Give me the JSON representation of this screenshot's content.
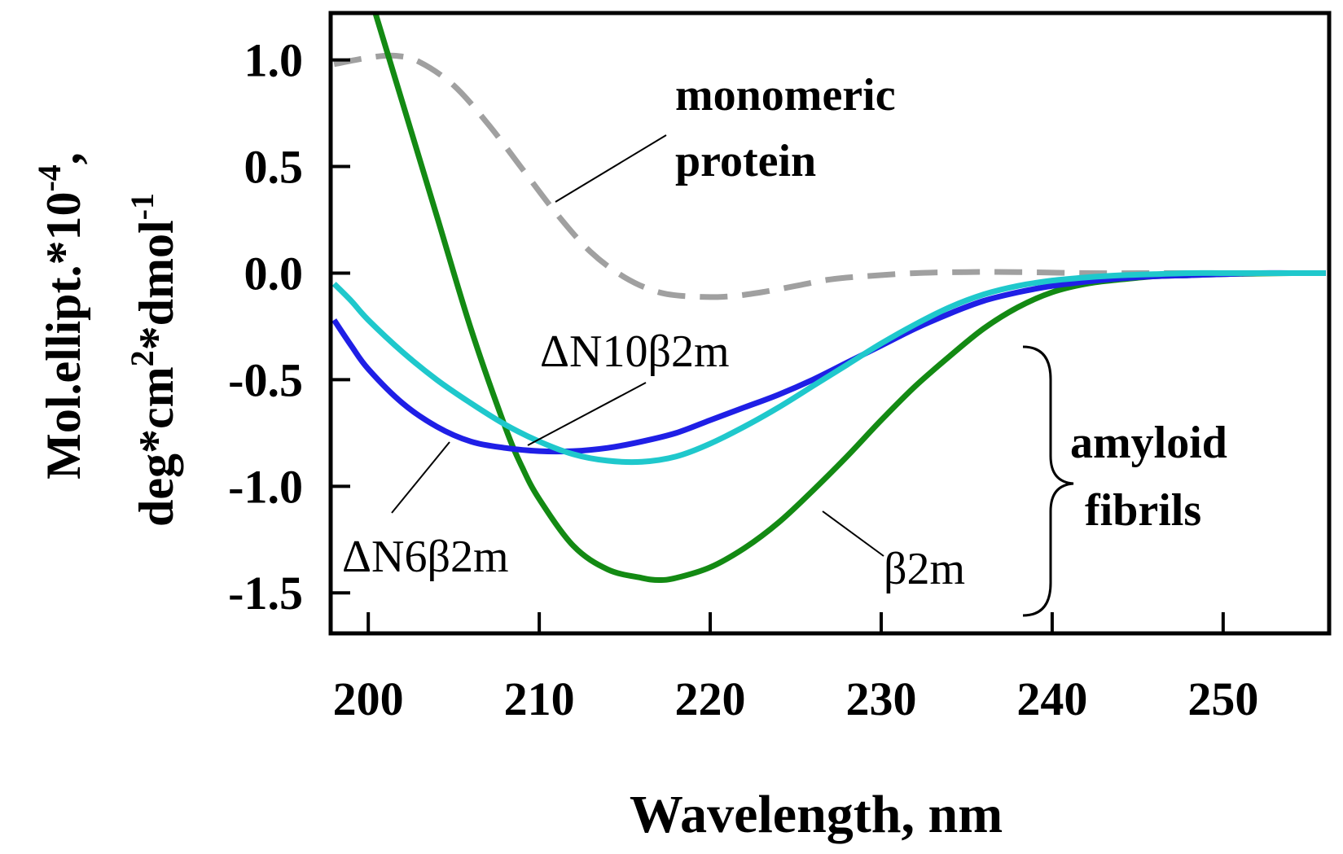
{
  "chart_data": {
    "type": "line",
    "xlabel": "Wavelength, nm",
    "ylabel_line1": "Mol.ellipt.*10",
    "ylabel_line1_sup": "-4",
    "ylabel_line1_end": ",",
    "ylabel_line2_a": "deg*cm",
    "ylabel_line2_sup1": "2",
    "ylabel_line2_b": "*dmol",
    "ylabel_line2_sup2": "-1",
    "xlim": [
      197.8,
      256.2
    ],
    "ylim": [
      -1.69,
      1.22
    ],
    "x_ticks": [
      200,
      210,
      220,
      230,
      240,
      250
    ],
    "x_tick_labels": [
      "200",
      "210",
      "220",
      "230",
      "240",
      "250"
    ],
    "y_ticks": [
      1.0,
      0.5,
      0.0,
      -0.5,
      -1.0,
      -1.5
    ],
    "y_tick_labels": [
      "1.0",
      "0.5",
      "0.0",
      "-0.5",
      "-1.0",
      "-1.5"
    ],
    "colors": {
      "monomeric": "#a0a0a0",
      "b2m": "#138a13",
      "dN6": "#1f1fe6",
      "dN10": "#1fc8cc"
    },
    "series": [
      {
        "key": "monomeric",
        "dashed": true,
        "x": [
          198,
          200,
          201.5,
          203,
          205,
          207,
          209,
          211,
          213,
          215,
          217,
          219,
          221,
          223,
          225,
          227,
          229,
          232,
          235,
          238,
          242,
          246,
          250,
          256
        ],
        "y": [
          0.98,
          1.01,
          1.02,
          0.99,
          0.88,
          0.7,
          0.49,
          0.28,
          0.1,
          -0.02,
          -0.09,
          -0.11,
          -0.11,
          -0.09,
          -0.06,
          -0.03,
          -0.015,
          0.0,
          0.005,
          0.005,
          0.0,
          0.0,
          0.0,
          0.0
        ]
      },
      {
        "key": "b2m",
        "dashed": false,
        "x": [
          200.3,
          202,
          204,
          206,
          208,
          209,
          210,
          212,
          214,
          216,
          217,
          218,
          220,
          222,
          224,
          226,
          228,
          230,
          232,
          234,
          236,
          238,
          240,
          242,
          244,
          246,
          248,
          250,
          252,
          254,
          256
        ],
        "y": [
          1.25,
          0.8,
          0.27,
          -0.26,
          -0.72,
          -0.91,
          -1.06,
          -1.28,
          -1.39,
          -1.43,
          -1.44,
          -1.43,
          -1.38,
          -1.29,
          -1.17,
          -1.02,
          -0.86,
          -0.69,
          -0.53,
          -0.39,
          -0.26,
          -0.16,
          -0.09,
          -0.05,
          -0.03,
          -0.015,
          -0.01,
          -0.005,
          -0.002,
          0.0,
          0.0
        ]
      },
      {
        "key": "dN6",
        "dashed": false,
        "x": [
          198,
          199,
          200,
          202,
          204,
          206,
          208,
          210,
          212,
          214,
          216,
          218,
          220,
          222,
          224,
          226,
          228,
          230,
          232,
          234,
          236,
          238,
          240,
          242,
          244,
          246,
          248,
          250,
          252,
          254,
          256
        ],
        "y": [
          -0.22,
          -0.34,
          -0.45,
          -0.61,
          -0.72,
          -0.79,
          -0.82,
          -0.835,
          -0.835,
          -0.82,
          -0.79,
          -0.75,
          -0.69,
          -0.63,
          -0.57,
          -0.5,
          -0.42,
          -0.34,
          -0.26,
          -0.19,
          -0.13,
          -0.09,
          -0.06,
          -0.04,
          -0.025,
          -0.015,
          -0.01,
          -0.005,
          0.0,
          0.0,
          0.0
        ]
      },
      {
        "key": "dN10",
        "dashed": false,
        "x": [
          198,
          199,
          200,
          202,
          204,
          206,
          208,
          210,
          212,
          214,
          216,
          218,
          220,
          222,
          224,
          226,
          228,
          230,
          232,
          234,
          236,
          238,
          240,
          242,
          244,
          246,
          248,
          250,
          252,
          254,
          256
        ],
        "y": [
          -0.05,
          -0.13,
          -0.22,
          -0.37,
          -0.5,
          -0.61,
          -0.71,
          -0.79,
          -0.85,
          -0.88,
          -0.885,
          -0.86,
          -0.8,
          -0.72,
          -0.63,
          -0.53,
          -0.43,
          -0.33,
          -0.24,
          -0.16,
          -0.1,
          -0.06,
          -0.035,
          -0.02,
          -0.01,
          -0.005,
          0.0,
          0.0,
          0.0,
          0.0,
          0.0
        ]
      }
    ],
    "annotations": {
      "monomeric_line1": "monomeric",
      "monomeric_line2": "protein",
      "dN10_label": "ΔN10β2m",
      "dN6_label": "ΔN6β2m",
      "b2m_label": "β2m",
      "amyloid_line1": "amyloid",
      "amyloid_line2": "fibrils"
    }
  }
}
